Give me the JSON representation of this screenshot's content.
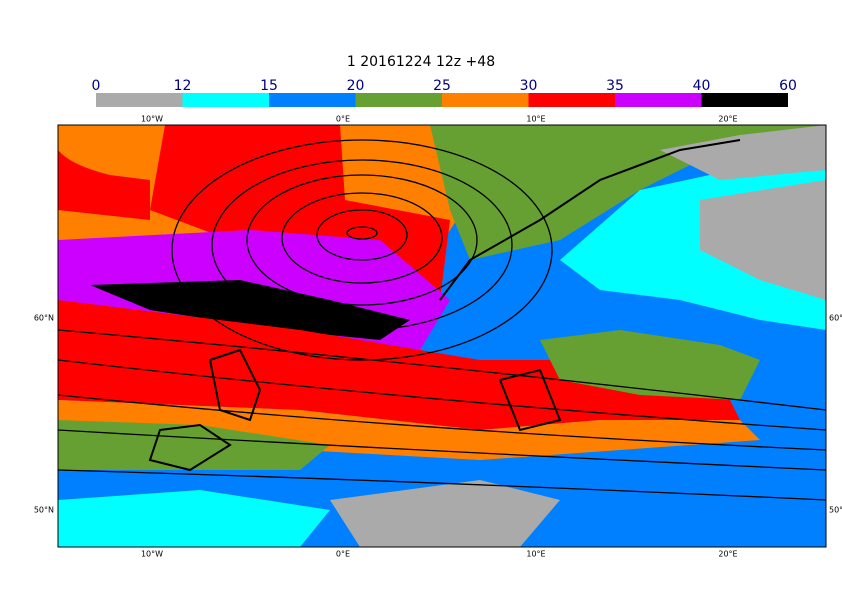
{
  "title": "1 20161224 12z +48",
  "colorbar": {
    "ticks": [
      0,
      12,
      15,
      20,
      25,
      30,
      35,
      40,
      60
    ],
    "colors": [
      "#aaaaaa",
      "#00ffff",
      "#0080ff",
      "#66a033",
      "#ff8000",
      "#ff0000",
      "#cc00ff",
      "#000000"
    ]
  },
  "longitude_labels": [
    "10°W",
    "0°E",
    "10°E",
    "20°E"
  ],
  "latitude_labels": [
    "60°N",
    "50°N"
  ]
}
